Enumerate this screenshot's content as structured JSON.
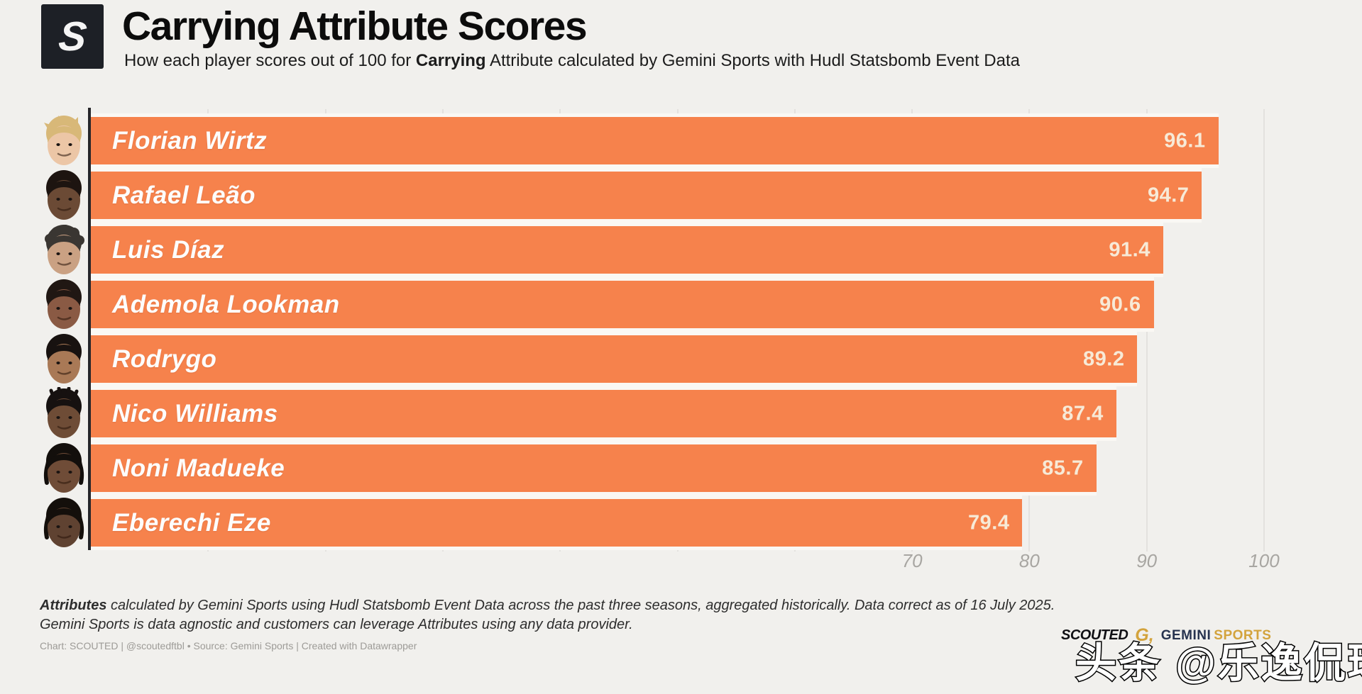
{
  "header": {
    "logo_letter": "S",
    "title": "Carrying Attribute Scores",
    "subtitle_prefix": "How each player scores out of 100 for ",
    "subtitle_bold": "Carrying",
    "subtitle_suffix": " Attribute calculated by Gemini Sports with Hudl Statsbomb Event Data"
  },
  "chart_data": {
    "type": "bar",
    "orientation": "horizontal",
    "title": "Carrying Attribute Scores",
    "categories": [
      "Florian Wirtz",
      "Rafael Leão",
      "Luis Díaz",
      "Ademola Lookman",
      "Rodrygo",
      "Nico Williams",
      "Noni Madueke",
      "Eberechi Eze"
    ],
    "values": [
      96.1,
      94.7,
      91.4,
      90.6,
      89.2,
      87.4,
      85.7,
      79.4
    ],
    "xlim": [
      0,
      100
    ],
    "x_ticks": [
      "70",
      "80",
      "90",
      "100"
    ],
    "x_tick_values": [
      70,
      80,
      90,
      100
    ],
    "grid_step": 10,
    "grid": true,
    "legend": "none",
    "bar_color": "#f6824c",
    "bar_gap_color": "#faf8f4",
    "value_label_color": "#f7ead7",
    "name_label_color": "#fdfdfd",
    "axis_line_color": "#26262a",
    "tick_label_color": "#a8a6a2"
  },
  "players": [
    {
      "name": "Florian Wirtz",
      "value": "96.1",
      "num": 96.1,
      "skin": "#ecc6a6",
      "hair": "#d8b878",
      "hair_style": "messy"
    },
    {
      "name": "Rafael Leão",
      "value": "94.7",
      "num": 94.7,
      "skin": "#6b4a35",
      "hair": "#1d1410",
      "hair_style": "short"
    },
    {
      "name": "Luis Díaz",
      "value": "91.4",
      "num": 91.4,
      "skin": "#caa183",
      "hair": "#3a3632",
      "hair_style": "curly"
    },
    {
      "name": "Ademola Lookman",
      "value": "90.6",
      "num": 90.6,
      "skin": "#8a5a44",
      "hair": "#201713",
      "hair_style": "short"
    },
    {
      "name": "Rodrygo",
      "value": "89.2",
      "num": 89.2,
      "skin": "#a97956",
      "hair": "#181210",
      "hair_style": "short"
    },
    {
      "name": "Nico Williams",
      "value": "87.4",
      "num": 87.4,
      "skin": "#6e4c36",
      "hair": "#161110",
      "hair_style": "braids"
    },
    {
      "name": "Noni Madueke",
      "value": "85.7",
      "num": 85.7,
      "skin": "#6f4c37",
      "hair": "#130f0c",
      "hair_style": "dreads"
    },
    {
      "name": "Eberechi Eze",
      "value": "79.4",
      "num": 79.4,
      "skin": "#5f4231",
      "hair": "#140f0b",
      "hair_style": "dreads"
    }
  ],
  "footer": {
    "note_bold": "Attributes",
    "note_line1_rest": " calculated by Gemini Sports using Hudl Statsbomb Event Data across the past three seasons, aggregated historically. Data correct as of 16 July 2025.",
    "note_line2": "Gemini Sports is data agnostic and customers can leverage Attributes using any data provider.",
    "credit": "Chart: SCOUTED | @scoutedftbl • Source: Gemini Sports | Created with Datawrapper"
  },
  "branding": {
    "scouted_wordmark": "SCOUTED",
    "gemini_g": "G,",
    "gemini_word1": "GEMINI",
    "gemini_word2": "SPORTS",
    "gemini_navy": "#27334f",
    "gemini_gold": "#d3a33c"
  },
  "watermark": {
    "text": "头条 @乐逸侃球"
  }
}
